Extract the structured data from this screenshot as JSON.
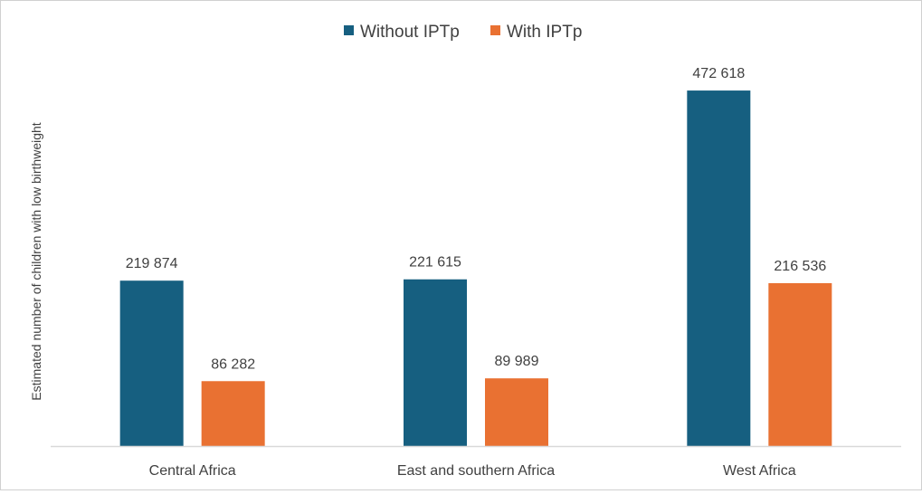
{
  "chart_data": {
    "type": "bar",
    "title": "",
    "xlabel": "",
    "ylabel": "Estimated number of children with low birthweight",
    "categories": [
      "Central Africa",
      "East and southern Africa",
      "West Africa"
    ],
    "series": [
      {
        "name": "Without IPTp",
        "color": "#165F80",
        "values": [
          219874,
          221615,
          472618
        ],
        "labels": [
          "219 874",
          "221 615",
          "472 618"
        ]
      },
      {
        "name": "With IPTp",
        "color": "#E97132",
        "values": [
          86282,
          89989,
          216536
        ],
        "labels": [
          "86 282",
          "89 989",
          "216 536"
        ]
      }
    ],
    "ylim": [
      0,
      500000
    ],
    "grid": false,
    "legend_position": "top",
    "axis_color": "#d9d9d9",
    "text_color": "#404040"
  }
}
